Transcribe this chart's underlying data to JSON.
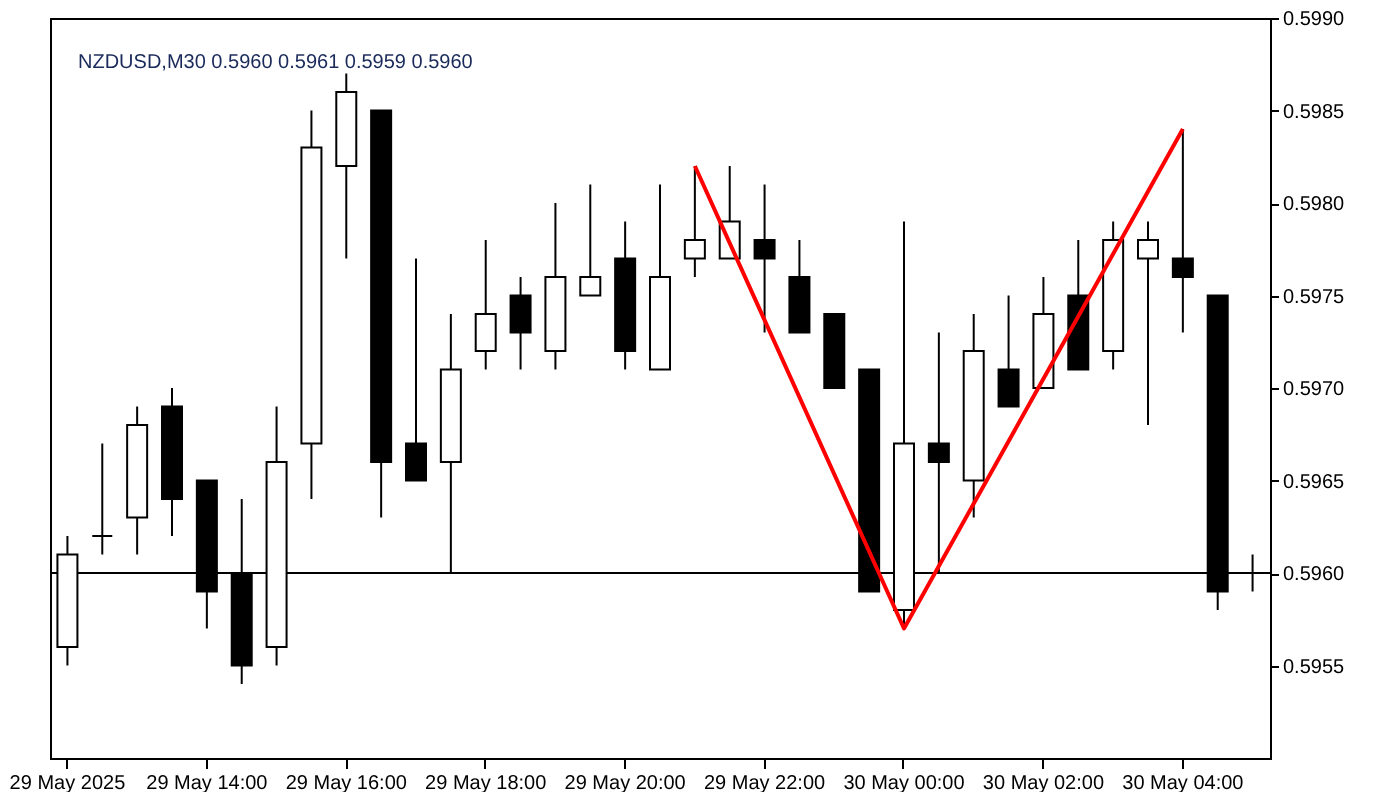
{
  "chart_data": {
    "type": "candlestick",
    "title": "NZDUSD,M30  0.5960 0.5961 0.5959 0.5960",
    "categories": [
      "29 May 2025",
      null,
      null,
      null,
      "29 May 14:00",
      null,
      null,
      null,
      "29 May 16:00",
      null,
      null,
      null,
      "29 May 18:00",
      null,
      null,
      null,
      "29 May 20:00",
      null,
      null,
      null,
      "29 May 22:00",
      null,
      null,
      null,
      "30 May 00:00",
      null,
      null,
      null,
      "30 May 02:00",
      null,
      null,
      null,
      "30 May 04:00",
      null,
      null
    ],
    "ohlc": [
      [
        0.5956,
        0.5962,
        0.5955,
        0.5961
      ],
      [
        0.5962,
        0.5967,
        0.5961,
        0.5962
      ],
      [
        0.5963,
        0.5969,
        0.5961,
        0.5968
      ],
      [
        0.5969,
        0.597,
        0.5962,
        0.5964
      ],
      [
        0.5965,
        0.5965,
        0.5957,
        0.5959
      ],
      [
        0.596,
        0.5964,
        0.5954,
        0.5955
      ],
      [
        0.5956,
        0.5969,
        0.5955,
        0.5966
      ],
      [
        0.5967,
        0.5985,
        0.5964,
        0.5983
      ],
      [
        0.5982,
        0.5987,
        0.5977,
        0.5986
      ],
      [
        0.5985,
        0.5985,
        0.5963,
        0.5966
      ],
      [
        0.5967,
        0.5977,
        0.5965,
        0.5965
      ],
      [
        0.5966,
        0.5974,
        0.596,
        0.5971
      ],
      [
        0.5972,
        0.5978,
        0.5971,
        0.5974
      ],
      [
        0.5975,
        0.5976,
        0.5971,
        0.5973
      ],
      [
        0.5972,
        0.598,
        0.5971,
        0.5976
      ],
      [
        0.5975,
        0.5981,
        0.5975,
        0.5976
      ],
      [
        0.5977,
        0.5979,
        0.5971,
        0.5972
      ],
      [
        0.5971,
        0.5981,
        0.5971,
        0.5976
      ],
      [
        0.5977,
        0.5982,
        0.5976,
        0.5978
      ],
      [
        0.5977,
        0.5982,
        0.5977,
        0.5979
      ],
      [
        0.5978,
        0.5981,
        0.5973,
        0.5977
      ],
      [
        0.5976,
        0.5978,
        0.5973,
        0.5973
      ],
      [
        0.5974,
        0.5974,
        0.597,
        0.597
      ],
      [
        0.5971,
        0.5971,
        0.5959,
        0.5959
      ],
      [
        0.5958,
        0.5979,
        0.5957,
        0.5967
      ],
      [
        0.5967,
        0.5973,
        0.596,
        0.5966
      ],
      [
        0.5965,
        0.5974,
        0.5963,
        0.5972
      ],
      [
        0.5971,
        0.5975,
        0.5969,
        0.5969
      ],
      [
        0.597,
        0.5976,
        0.597,
        0.5974
      ],
      [
        0.5975,
        0.5978,
        0.5971,
        0.5971
      ],
      [
        0.5972,
        0.5979,
        0.5971,
        0.5978
      ],
      [
        0.5977,
        0.5979,
        0.5968,
        0.5978
      ],
      [
        0.5977,
        0.5984,
        0.5973,
        0.5976
      ],
      [
        0.5975,
        0.5975,
        0.5958,
        0.5959
      ],
      [
        0.596,
        0.5961,
        0.5959,
        0.596
      ]
    ],
    "series": [
      {
        "type": "line",
        "color": "#ff0000",
        "values": [
          null,
          null,
          null,
          null,
          null,
          null,
          null,
          null,
          null,
          null,
          null,
          null,
          null,
          null,
          null,
          null,
          null,
          null,
          0.5982,
          null,
          null,
          null,
          null,
          null,
          0.5957,
          null,
          null,
          null,
          null,
          null,
          null,
          null,
          0.5984,
          null,
          null
        ]
      }
    ],
    "ylim": [
      0.595,
      0.599
    ],
    "yticks": [
      {
        "value": 0.5955,
        "label": "0.5955"
      },
      {
        "value": 0.596,
        "label": "0.5960"
      },
      {
        "value": 0.5965,
        "label": "0.5965"
      },
      {
        "value": 0.597,
        "label": "0.5970"
      },
      {
        "value": 0.5975,
        "label": "0.5975"
      },
      {
        "value": 0.598,
        "label": "0.5980"
      },
      {
        "value": 0.5985,
        "label": "0.5985"
      },
      {
        "value": 0.599,
        "label": "0.5990"
      }
    ],
    "ref_lines": [
      {
        "axis": "y",
        "value": 0.596,
        "color": "#000000"
      }
    ]
  }
}
